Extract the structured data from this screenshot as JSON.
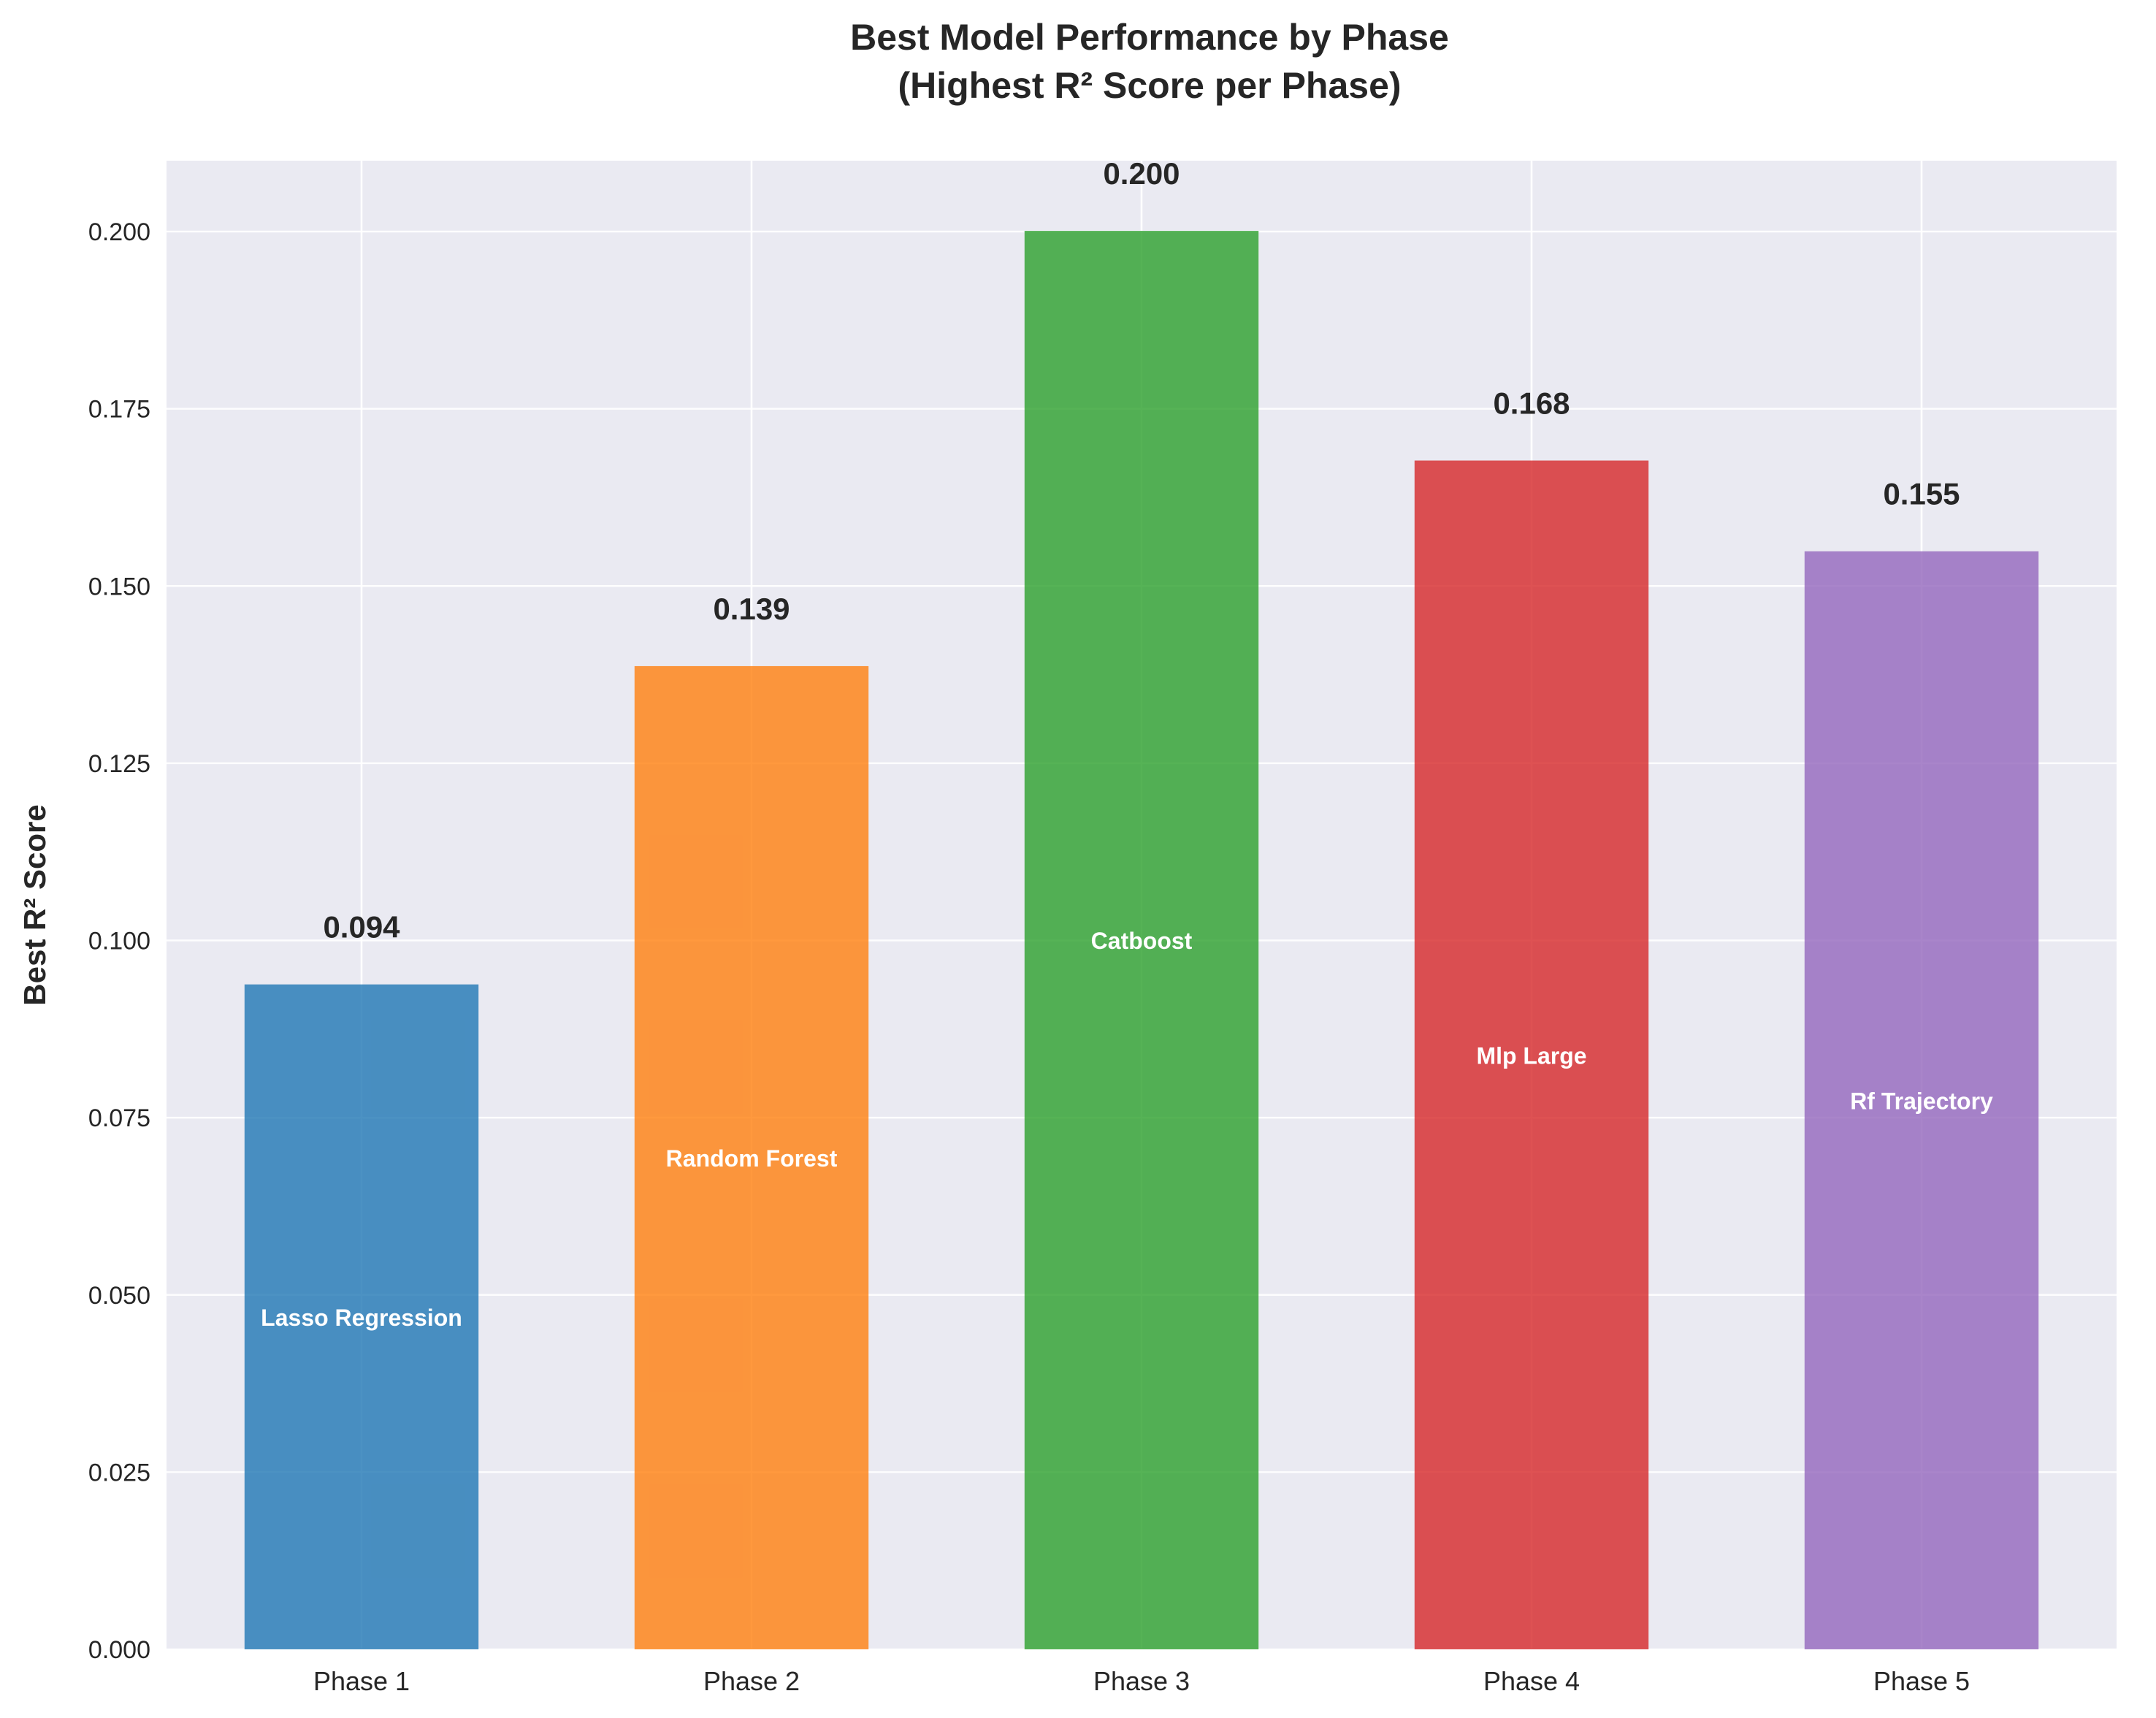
{
  "chart_data": {
    "type": "bar",
    "title_lines": [
      "Best Model Performance by Phase",
      "(Highest R² Score per Phase)"
    ],
    "xlabel": "",
    "ylabel": "Best R² Score",
    "categories": [
      "Phase 1",
      "Phase 2",
      "Phase 3",
      "Phase 4",
      "Phase 5"
    ],
    "values": [
      0.0938,
      0.1387,
      0.2001,
      0.1677,
      0.1549
    ],
    "value_labels": [
      "0.094",
      "0.139",
      "0.200",
      "0.168",
      "0.155"
    ],
    "model_labels": [
      "Lasso Regression",
      "Random Forest",
      "Catboost",
      "Mlp Large",
      "Rf Trajectory"
    ],
    "colors": [
      "#1f77b4",
      "#ff7f0e",
      "#2ca02c",
      "#d62728",
      "#9467bd"
    ],
    "bar_opacity": 0.8,
    "ylim": [
      0,
      0.21
    ],
    "yticks": [
      0.0,
      0.025,
      0.05,
      0.075,
      0.1,
      0.125,
      0.15,
      0.175,
      0.2
    ],
    "ytick_labels": [
      "0.000",
      "0.025",
      "0.050",
      "0.075",
      "0.100",
      "0.125",
      "0.150",
      "0.175",
      "0.200"
    ],
    "grid": true,
    "background": "#eaeaf2"
  }
}
